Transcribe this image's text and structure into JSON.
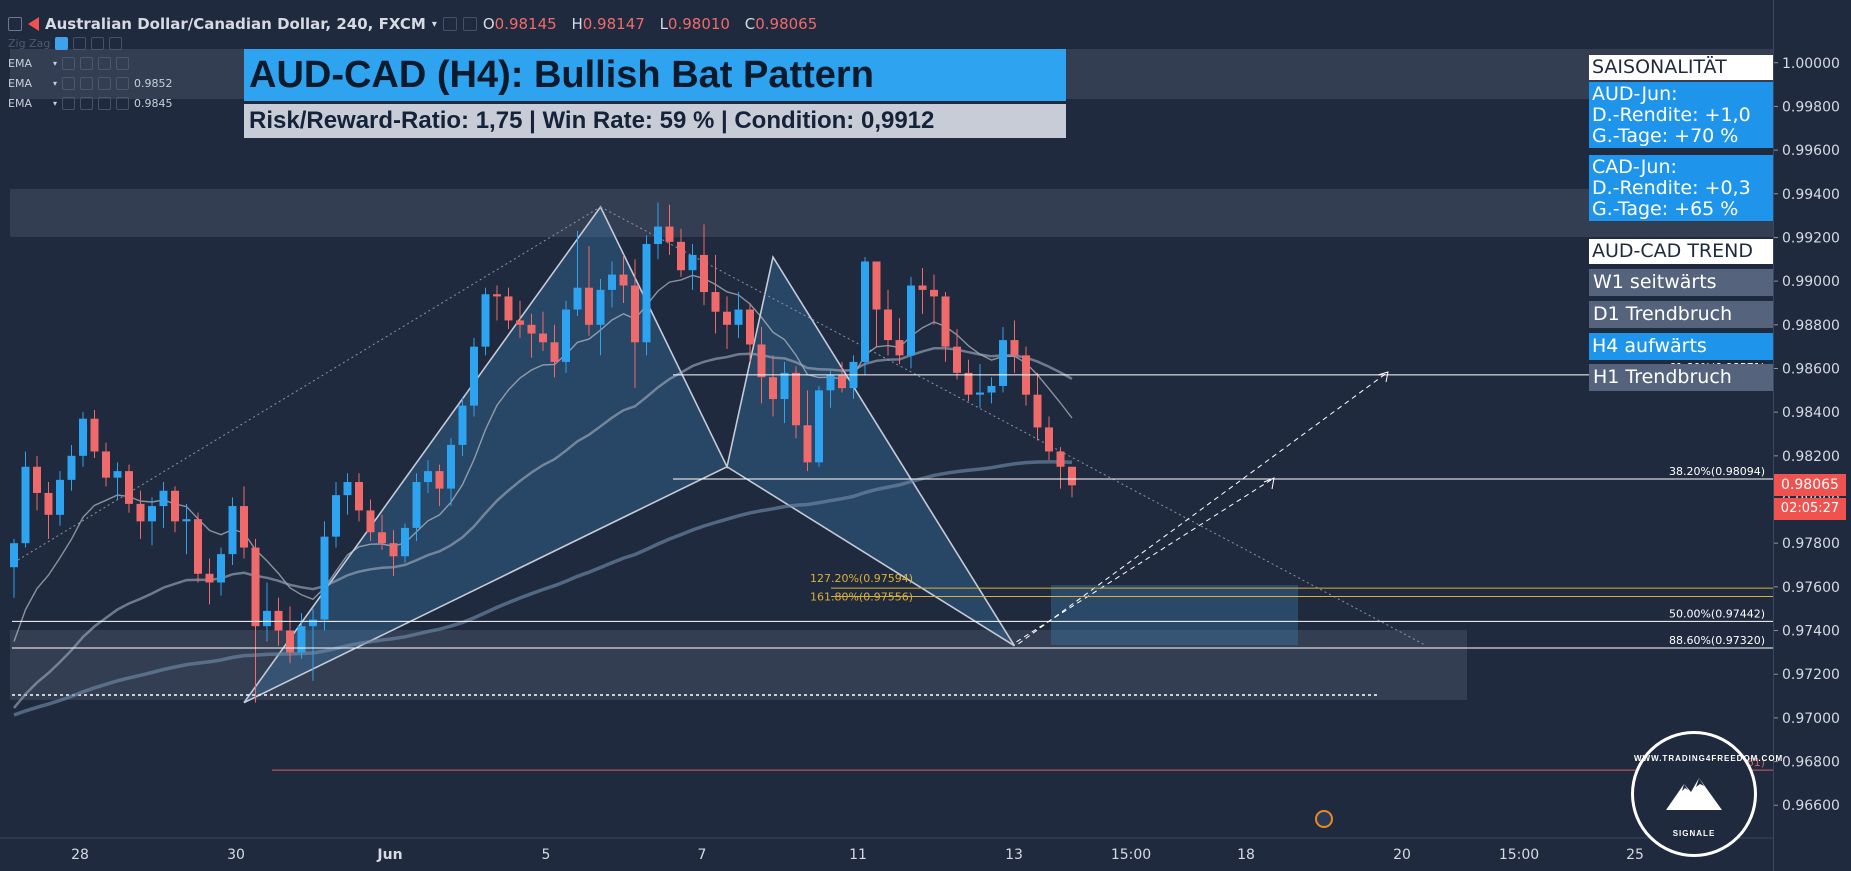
{
  "header": {
    "symbol": "Australian Dollar/Canadian Dollar, 240, FXCM",
    "open_label": "O",
    "open": "0.98145",
    "high_label": "H",
    "high": "0.98147",
    "low_label": "L",
    "low": "0.98010",
    "close_label": "C",
    "close": "0.98065"
  },
  "indicators": [
    {
      "name": "Zig Zag",
      "value": ""
    },
    {
      "name": "EMA",
      "value": ""
    },
    {
      "name": "EMA",
      "value": "0.9852"
    },
    {
      "name": "EMA",
      "value": "0.9845"
    }
  ],
  "title": "AUD-CAD (H4): Bullish Bat Pattern",
  "subtitle": "Risk/Reward-Ratio: 1,75 | Win Rate: 59 % | Condition: 0,9912",
  "sidebar": {
    "season_header": "SAISONALITÄT",
    "aud_lines": [
      "AUD-Jun:",
      "D.-Rendite: +1,0",
      "G.-Tage: +70 %"
    ],
    "cad_lines": [
      "CAD-Jun:",
      "D.-Rendite: +0,3",
      "G.-Tage: +65 %"
    ],
    "trend_header": "AUD-CAD TREND",
    "trends": [
      "W1 seitwärts",
      "D1 Trendbruch",
      "H4 aufwärts",
      "H1 Trendbruch"
    ]
  },
  "logo": {
    "text": "WWW.TRADING4FREEDOM.COM",
    "sub": "SIGNALE"
  },
  "colors": {
    "bull": "#2ea3ef",
    "bear": "#ef6b6b",
    "accent": "#1e95ea",
    "gold": "#d8b13a",
    "current_price": "#ef5350"
  },
  "chart_data": {
    "type": "candlestick",
    "title": "AUD-CAD (H4): Bullish Bat Pattern",
    "ylim": [
      0.9645,
      1.0015
    ],
    "yticks": [
      "1.00000",
      "0.99800",
      "0.99600",
      "0.99400",
      "0.99200",
      "0.99000",
      "0.98800",
      "0.98600",
      "0.98400",
      "0.98200",
      "0.98000",
      "0.97800",
      "0.97600",
      "0.97400",
      "0.97200",
      "0.97000",
      "0.96800",
      "0.96600"
    ],
    "xticks": [
      "28",
      "30",
      "Jun",
      "5",
      "7",
      "11",
      "13",
      "15:00",
      "18",
      "20",
      "15:00",
      "25"
    ],
    "current_price": "0.98065",
    "countdown": "02:05:27",
    "candles": [
      {
        "o": 0.9769,
        "h": 0.9782,
        "l": 0.9755,
        "c": 0.978
      },
      {
        "o": 0.978,
        "h": 0.9822,
        "l": 0.9778,
        "c": 0.9815
      },
      {
        "o": 0.9815,
        "h": 0.982,
        "l": 0.9795,
        "c": 0.9803
      },
      {
        "o": 0.9803,
        "h": 0.9808,
        "l": 0.9782,
        "c": 0.9793
      },
      {
        "o": 0.9793,
        "h": 0.9813,
        "l": 0.9788,
        "c": 0.9809
      },
      {
        "o": 0.9809,
        "h": 0.9825,
        "l": 0.9804,
        "c": 0.982
      },
      {
        "o": 0.982,
        "h": 0.984,
        "l": 0.9815,
        "c": 0.9837
      },
      {
        "o": 0.9837,
        "h": 0.9841,
        "l": 0.9819,
        "c": 0.9822
      },
      {
        "o": 0.9822,
        "h": 0.9826,
        "l": 0.9806,
        "c": 0.981
      },
      {
        "o": 0.981,
        "h": 0.9817,
        "l": 0.98,
        "c": 0.9813
      },
      {
        "o": 0.9813,
        "h": 0.9816,
        "l": 0.9794,
        "c": 0.9798
      },
      {
        "o": 0.9798,
        "h": 0.9804,
        "l": 0.9782,
        "c": 0.979
      },
      {
        "o": 0.979,
        "h": 0.9801,
        "l": 0.9779,
        "c": 0.9797
      },
      {
        "o": 0.9797,
        "h": 0.9808,
        "l": 0.9787,
        "c": 0.9804
      },
      {
        "o": 0.9804,
        "h": 0.9806,
        "l": 0.9785,
        "c": 0.979
      },
      {
        "o": 0.979,
        "h": 0.9798,
        "l": 0.9775,
        "c": 0.9791
      },
      {
        "o": 0.9791,
        "h": 0.9794,
        "l": 0.9762,
        "c": 0.9766
      },
      {
        "o": 0.9766,
        "h": 0.9773,
        "l": 0.9752,
        "c": 0.9762
      },
      {
        "o": 0.9762,
        "h": 0.9778,
        "l": 0.9756,
        "c": 0.9775
      },
      {
        "o": 0.9775,
        "h": 0.9801,
        "l": 0.977,
        "c": 0.9797
      },
      {
        "o": 0.9797,
        "h": 0.9806,
        "l": 0.9773,
        "c": 0.9778
      },
      {
        "o": 0.9778,
        "h": 0.9782,
        "l": 0.9707,
        "c": 0.9742
      },
      {
        "o": 0.9742,
        "h": 0.9762,
        "l": 0.9735,
        "c": 0.9749
      },
      {
        "o": 0.9749,
        "h": 0.9755,
        "l": 0.9733,
        "c": 0.974
      },
      {
        "o": 0.974,
        "h": 0.9751,
        "l": 0.9725,
        "c": 0.973
      },
      {
        "o": 0.973,
        "h": 0.9748,
        "l": 0.9727,
        "c": 0.9742
      },
      {
        "o": 0.9742,
        "h": 0.975,
        "l": 0.9717,
        "c": 0.9745
      },
      {
        "o": 0.9745,
        "h": 0.979,
        "l": 0.974,
        "c": 0.9783
      },
      {
        "o": 0.9783,
        "h": 0.9808,
        "l": 0.9778,
        "c": 0.9802
      },
      {
        "o": 0.9802,
        "h": 0.9812,
        "l": 0.9793,
        "c": 0.9808
      },
      {
        "o": 0.9808,
        "h": 0.9812,
        "l": 0.979,
        "c": 0.9795
      },
      {
        "o": 0.9795,
        "h": 0.98,
        "l": 0.9781,
        "c": 0.9785
      },
      {
        "o": 0.9785,
        "h": 0.9793,
        "l": 0.9777,
        "c": 0.978
      },
      {
        "o": 0.978,
        "h": 0.9786,
        "l": 0.9765,
        "c": 0.9774
      },
      {
        "o": 0.9774,
        "h": 0.9789,
        "l": 0.9771,
        "c": 0.9787
      },
      {
        "o": 0.9787,
        "h": 0.9812,
        "l": 0.9781,
        "c": 0.9808
      },
      {
        "o": 0.9808,
        "h": 0.9818,
        "l": 0.9803,
        "c": 0.9813
      },
      {
        "o": 0.9813,
        "h": 0.9816,
        "l": 0.9797,
        "c": 0.9805
      },
      {
        "o": 0.9805,
        "h": 0.9828,
        "l": 0.9797,
        "c": 0.9825
      },
      {
        "o": 0.9825,
        "h": 0.9847,
        "l": 0.982,
        "c": 0.9843
      },
      {
        "o": 0.9843,
        "h": 0.9874,
        "l": 0.9838,
        "c": 0.987
      },
      {
        "o": 0.987,
        "h": 0.9897,
        "l": 0.9866,
        "c": 0.9894
      },
      {
        "o": 0.9894,
        "h": 0.9898,
        "l": 0.9882,
        "c": 0.9893
      },
      {
        "o": 0.9893,
        "h": 0.9897,
        "l": 0.9878,
        "c": 0.9882
      },
      {
        "o": 0.9882,
        "h": 0.9891,
        "l": 0.9874,
        "c": 0.988
      },
      {
        "o": 0.988,
        "h": 0.9885,
        "l": 0.9865,
        "c": 0.9876
      },
      {
        "o": 0.9876,
        "h": 0.9886,
        "l": 0.9868,
        "c": 0.9872
      },
      {
        "o": 0.9872,
        "h": 0.988,
        "l": 0.9856,
        "c": 0.9863
      },
      {
        "o": 0.9863,
        "h": 0.9891,
        "l": 0.9858,
        "c": 0.9887
      },
      {
        "o": 0.9887,
        "h": 0.9923,
        "l": 0.9884,
        "c": 0.9897
      },
      {
        "o": 0.9897,
        "h": 0.9916,
        "l": 0.9875,
        "c": 0.988
      },
      {
        "o": 0.988,
        "h": 0.9901,
        "l": 0.9866,
        "c": 0.9896
      },
      {
        "o": 0.9896,
        "h": 0.9909,
        "l": 0.9888,
        "c": 0.9903
      },
      {
        "o": 0.9903,
        "h": 0.9912,
        "l": 0.989,
        "c": 0.9898
      },
      {
        "o": 0.9898,
        "h": 0.991,
        "l": 0.9851,
        "c": 0.9872
      },
      {
        "o": 0.9872,
        "h": 0.9921,
        "l": 0.9866,
        "c": 0.9917
      },
      {
        "o": 0.9917,
        "h": 0.9936,
        "l": 0.991,
        "c": 0.9925
      },
      {
        "o": 0.9925,
        "h": 0.9935,
        "l": 0.9912,
        "c": 0.9918
      },
      {
        "o": 0.9918,
        "h": 0.9924,
        "l": 0.9902,
        "c": 0.9905
      },
      {
        "o": 0.9905,
        "h": 0.9917,
        "l": 0.9896,
        "c": 0.9912
      },
      {
        "o": 0.9912,
        "h": 0.9926,
        "l": 0.9889,
        "c": 0.9895
      },
      {
        "o": 0.9895,
        "h": 0.9912,
        "l": 0.9876,
        "c": 0.9886
      },
      {
        "o": 0.9886,
        "h": 0.9893,
        "l": 0.9869,
        "c": 0.988
      },
      {
        "o": 0.988,
        "h": 0.9895,
        "l": 0.9874,
        "c": 0.9887
      },
      {
        "o": 0.9887,
        "h": 0.989,
        "l": 0.9863,
        "c": 0.9871
      },
      {
        "o": 0.9871,
        "h": 0.9879,
        "l": 0.9844,
        "c": 0.9856
      },
      {
        "o": 0.9856,
        "h": 0.9866,
        "l": 0.9838,
        "c": 0.9846
      },
      {
        "o": 0.9846,
        "h": 0.9863,
        "l": 0.9835,
        "c": 0.9858
      },
      {
        "o": 0.9858,
        "h": 0.9861,
        "l": 0.9828,
        "c": 0.9834
      },
      {
        "o": 0.9834,
        "h": 0.985,
        "l": 0.9813,
        "c": 0.9817
      },
      {
        "o": 0.9817,
        "h": 0.9852,
        "l": 0.9815,
        "c": 0.985
      },
      {
        "o": 0.985,
        "h": 0.9859,
        "l": 0.9842,
        "c": 0.9857
      },
      {
        "o": 0.9857,
        "h": 0.9863,
        "l": 0.9849,
        "c": 0.9851
      },
      {
        "o": 0.9851,
        "h": 0.9866,
        "l": 0.9846,
        "c": 0.9863
      },
      {
        "o": 0.9863,
        "h": 0.9911,
        "l": 0.9857,
        "c": 0.9909
      },
      {
        "o": 0.9909,
        "h": 0.9908,
        "l": 0.987,
        "c": 0.9887
      },
      {
        "o": 0.9887,
        "h": 0.9896,
        "l": 0.9866,
        "c": 0.9873
      },
      {
        "o": 0.9873,
        "h": 0.9883,
        "l": 0.9862,
        "c": 0.9866
      },
      {
        "o": 0.9866,
        "h": 0.9902,
        "l": 0.986,
        "c": 0.9898
      },
      {
        "o": 0.9898,
        "h": 0.9906,
        "l": 0.9885,
        "c": 0.9896
      },
      {
        "o": 0.9896,
        "h": 0.9903,
        "l": 0.988,
        "c": 0.9893
      },
      {
        "o": 0.9893,
        "h": 0.9895,
        "l": 0.9863,
        "c": 0.987
      },
      {
        "o": 0.987,
        "h": 0.9878,
        "l": 0.9855,
        "c": 0.9858
      },
      {
        "o": 0.9858,
        "h": 0.9864,
        "l": 0.9845,
        "c": 0.9848
      },
      {
        "o": 0.9848,
        "h": 0.9862,
        "l": 0.9842,
        "c": 0.9849
      },
      {
        "o": 0.9849,
        "h": 0.9856,
        "l": 0.9844,
        "c": 0.9852
      },
      {
        "o": 0.9852,
        "h": 0.9879,
        "l": 0.9849,
        "c": 0.9873
      },
      {
        "o": 0.9873,
        "h": 0.9882,
        "l": 0.9858,
        "c": 0.9866
      },
      {
        "o": 0.9866,
        "h": 0.987,
        "l": 0.9843,
        "c": 0.9848
      },
      {
        "o": 0.9848,
        "h": 0.9858,
        "l": 0.9827,
        "c": 0.9833
      },
      {
        "o": 0.9833,
        "h": 0.9838,
        "l": 0.9818,
        "c": 0.9822
      },
      {
        "o": 0.9822,
        "h": 0.9824,
        "l": 0.9805,
        "c": 0.9815
      },
      {
        "o": 0.9815,
        "h": 0.9815,
        "l": 0.9801,
        "c": 0.98065
      }
    ],
    "fib_levels": [
      {
        "label": "61.80%(0.98571)",
        "price": 0.98571,
        "color": "#ffffff"
      },
      {
        "label": "38.20%(0.98094)",
        "price": 0.98094,
        "color": "#ffffff"
      },
      {
        "label": "127.20%(0.97594)",
        "price": 0.97594,
        "color": "#d8b13a"
      },
      {
        "label": "161.80%(0.97556)",
        "price": 0.97556,
        "color": "#d8b13a"
      },
      {
        "label": "50.00%(0.97442)",
        "price": 0.97442,
        "color": "#ffffff"
      },
      {
        "label": "88.60%(0.97320)",
        "price": 0.9732,
        "color": "#ffffff"
      },
      {
        "label": "113.00%(0.96761)",
        "price": 0.96761,
        "color": "#d06060"
      }
    ],
    "pattern_points": {
      "X": [
        20,
        0.9707
      ],
      "A": [
        51,
        0.9934
      ],
      "B": [
        62,
        0.9815
      ],
      "C": [
        66,
        0.9911
      ],
      "D": [
        87,
        0.9733
      ]
    },
    "grid": false,
    "legend": "none"
  }
}
